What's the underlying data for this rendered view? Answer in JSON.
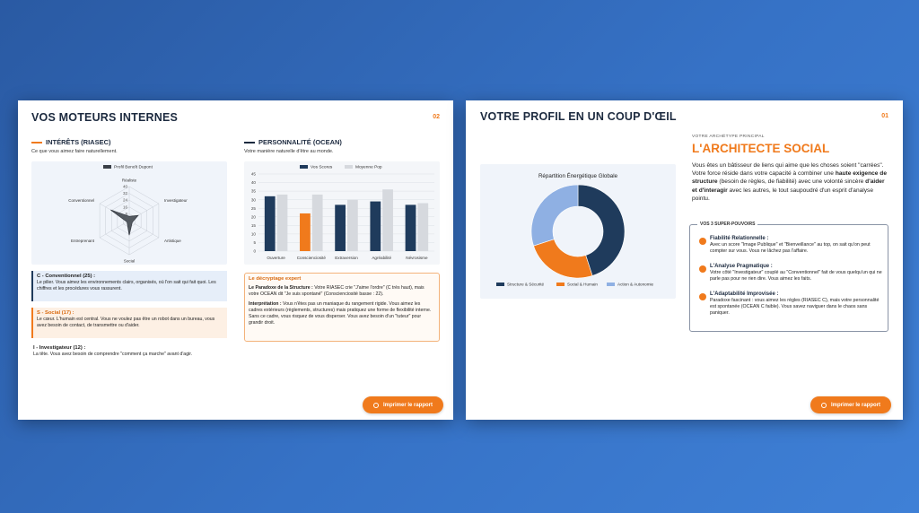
{
  "pages": [
    {
      "title": "VOS MOTEURS INTERNES",
      "page_number": "02",
      "left_section": {
        "heading": "INTÉRÊTS (RIASEC)",
        "subtitle": "Ce que vous aimez faire naturellement.",
        "cards": [
          {
            "title": "C - Conventionnel (25) :",
            "text": "Le pilier. Vous aimez les environnements clairs, organisés, où l'on sait qui fait quoi. Les chiffres et les procédures vous rassurent."
          },
          {
            "title": "S - Social (17) :",
            "text": "Le cœur. L'humain est central. Vous ne voulez pas être un robot dans un bureau, vous avez besoin de contact, de transmettre ou d'aider."
          },
          {
            "title": "I - Investigateur (12) :",
            "text": "La tête. Vous avez besoin de comprendre \"comment ça marche\" avant d'agir."
          }
        ]
      },
      "right_section": {
        "heading": "PERSONNALITÉ (OCEAN)",
        "subtitle": "Votre manière naturelle d'être au monde.",
        "expert": {
          "title": "Le décryptage expert",
          "paragraphs": [
            {
              "lead": "Le Paradoxe de la Structure :",
              "text": " Votre RIASEC crie \"J'aime l'ordre\" (C très haut), mais votre OCEAN dit \"Je suis spontané\" (Conscienciosité basse : 22)."
            },
            {
              "lead": "Interprétation :",
              "text": " Vous n'êtes pas un maniaque du rangement rigide. Vous aimez les cadres extérieurs (règlements, structures) mais pratiquez une forme de flexibilité interne. Sans ce cadre, vous risquez de vous disperser. Vous avez besoin d'un \"tuteur\" pour grandir droit."
            }
          ]
        }
      },
      "button": "Imprimer le rapport"
    },
    {
      "title": "VOTRE PROFIL EN UN COUP D'ŒIL",
      "page_number": "01",
      "kicker": "VOTRE ARCHÉTYPE PRINCIPAL",
      "archetype": "L'ARCHITECTE SOCIAL",
      "intro": [
        "Vous êtes un bâtisseur de liens qui aime que les choses soient \"carrées\". Votre force réside dans votre capacité à combiner une ",
        "haute exigence de structure",
        " (besoin de règles, de fiabilité) avec une volonté sincère ",
        "d'aider et d'interagir",
        " avec les autres, le tout saupoudré d'un esprit d'analyse pointu."
      ],
      "powers_title": "VOS 3 SUPER-POUVOIRS",
      "powers": [
        {
          "title": "Fiabilité Relationnelle :",
          "text": "Avec un score \"Image Publique\" et \"Bienveillance\" au top, on sait qu'on peut compter sur vous. Vous ne lâchez pas l'affaire."
        },
        {
          "title": "L'Analyse Pragmatique :",
          "text": "Votre côté \"Investigateur\" couplé au \"Conventionnel\" fait de vous quelqu'un qui ne parle pas pour ne rien dire. Vous aimez les faits."
        },
        {
          "title": "L'Adaptabilité Improvisée :",
          "text": "Paradoxe fascinant : vous aimez les règles (RIASEC C), mais votre personnalité est spontanée (OCEAN C faible). Vous savez naviguer dans le chaos sans paniquer."
        }
      ],
      "button": "Imprimer le rapport"
    }
  ],
  "chart_data": [
    {
      "type": "radar",
      "categories": [
        "Réaliste",
        "Investigateur",
        "Artistique",
        "Social",
        "Entreprenant",
        "Conventionnel"
      ],
      "series": [
        {
          "name": "Profil Benoît Dupont",
          "color": "#3a3f47",
          "values": [
            5,
            12,
            4,
            17,
            3,
            25
          ]
        }
      ],
      "rlim": [
        0,
        40
      ],
      "rticks": [
        8,
        16,
        24,
        32,
        40
      ]
    },
    {
      "type": "bar",
      "categories": [
        "Ouverture",
        "Conscienciosité",
        "Extraversion",
        "Agréabilité",
        "Névrosisme"
      ],
      "series": [
        {
          "name": "Vos Scores",
          "color": "#1f3b5c",
          "colors": [
            "#1f3b5c",
            "#f07a1c",
            "#1f3b5c",
            "#1f3b5c",
            "#1f3b5c"
          ],
          "values": [
            32,
            22,
            27,
            29,
            27
          ]
        },
        {
          "name": "Moyenne Pop",
          "color": "#d6d9de",
          "values": [
            33,
            33,
            30,
            36,
            28
          ]
        }
      ],
      "ylim": [
        0,
        45
      ],
      "yticks": [
        0,
        5,
        10,
        15,
        20,
        25,
        30,
        35,
        40,
        45
      ],
      "grid": true
    },
    {
      "type": "donut",
      "title": "Répartition Énergétique Globale",
      "categories": [
        "Structure & Sécurité",
        "Social & Humain",
        "Action & Autonomie"
      ],
      "values": [
        45,
        25,
        30
      ],
      "colors": [
        "#1f3b5c",
        "#f07a1c",
        "#8fb0e3"
      ]
    }
  ]
}
